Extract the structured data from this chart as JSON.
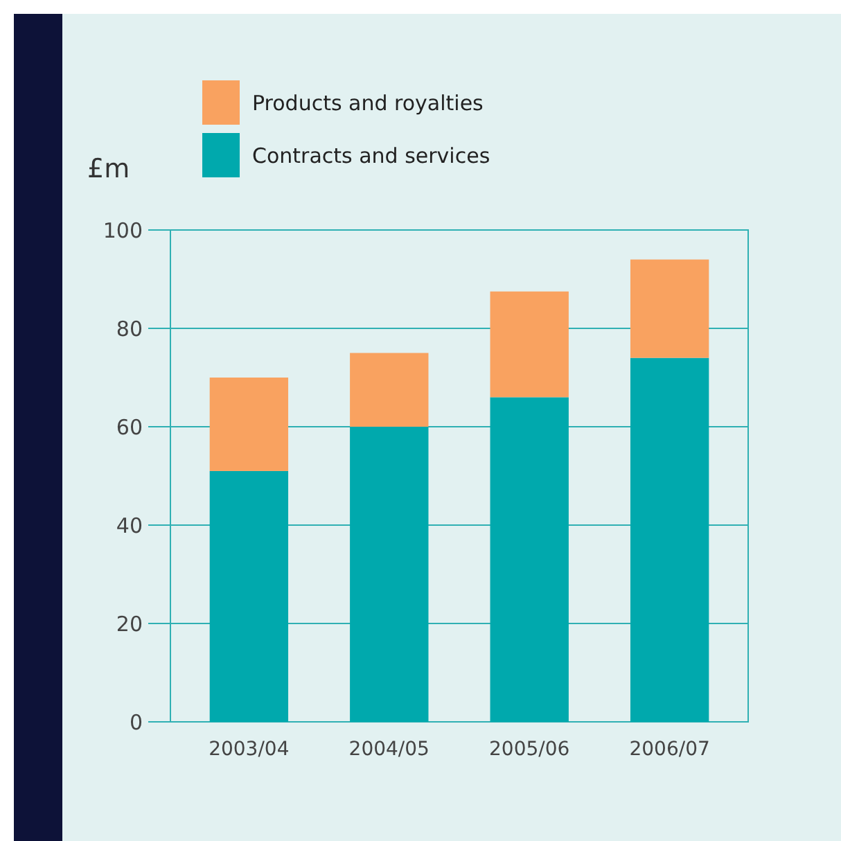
{
  "chart_data": {
    "type": "bar",
    "stacked": true,
    "ylabel": "£m",
    "categories": [
      "2003/04",
      "2004/05",
      "2005/06",
      "2006/07"
    ],
    "series": [
      {
        "name": "Contracts and services",
        "color": "#00a9ad",
        "values": [
          51,
          60,
          66,
          74
        ]
      },
      {
        "name": "Products and royalties",
        "color": "#f9a260",
        "values": [
          19,
          15,
          21.5,
          20
        ]
      }
    ],
    "ylim": [
      0,
      100
    ],
    "yticks": [
      0,
      20,
      40,
      60,
      80,
      100
    ],
    "grid": "y",
    "legend": "top left"
  }
}
